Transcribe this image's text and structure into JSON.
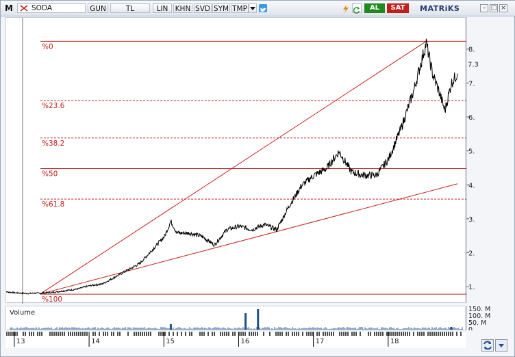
{
  "toolbar": {
    "logo": "M",
    "symbol": "SODA",
    "period": "GUN",
    "currency": "TL",
    "buttons": [
      "LIN",
      "KHN",
      "SVD",
      "SYM",
      "TMP"
    ],
    "buy_label": "AL",
    "sell_label": "SAT",
    "brand": "MATRiKS"
  },
  "colors": {
    "price_line": "#000000",
    "fib_line": "#c0201c",
    "volume_bar": "#1d4f8c",
    "buy": "#1f8a1f",
    "sell": "#c0201c"
  },
  "chart_data": {
    "type": "line",
    "x": [
      "2012-11",
      "2013-01",
      "2013-03",
      "2013-05",
      "2013-07",
      "2013-09",
      "2013-11",
      "2014-01",
      "2014-03",
      "2014-05",
      "2014-07",
      "2014-09",
      "2014-11",
      "2015-01",
      "2015-02",
      "2015-03",
      "2015-05",
      "2015-07",
      "2015-09",
      "2015-11",
      "2016-01",
      "2016-03",
      "2016-05",
      "2016-07",
      "2016-09",
      "2016-11",
      "2017-01",
      "2017-03",
      "2017-05",
      "2017-07",
      "2017-09",
      "2017-11",
      "2018-01",
      "2018-03",
      "2018-05",
      "2018-07",
      "2018-08",
      "2018-09",
      "2018-10",
      "2018-11",
      "2018-12"
    ],
    "y": [
      0.88,
      0.84,
      0.82,
      0.83,
      0.85,
      0.9,
      0.95,
      1.05,
      1.1,
      1.3,
      1.5,
      1.7,
      2.1,
      2.5,
      2.95,
      2.6,
      2.6,
      2.5,
      2.25,
      2.7,
      2.8,
      2.7,
      2.85,
      2.7,
      3.4,
      4.0,
      4.3,
      4.5,
      5.0,
      4.4,
      4.3,
      4.3,
      4.8,
      5.7,
      6.8,
      8.2,
      7.3,
      6.8,
      6.2,
      7.0,
      7.3
    ],
    "y_ticks": [
      "1.",
      "2.",
      "3.",
      "4.",
      "5.",
      "6.",
      "7.",
      "8."
    ],
    "y_tick_values": [
      1,
      2,
      3,
      4,
      5,
      6,
      7,
      8
    ],
    "ylim": [
      0.6,
      8.7
    ],
    "last_value_label": "7.3",
    "x_ticks": [
      "13",
      "14",
      "15",
      "16",
      "17",
      "18"
    ],
    "fibonacci": [
      {
        "label": "%0",
        "value": 8.25
      },
      {
        "label": "%23.6",
        "value": 6.5
      },
      {
        "label": "%38.2",
        "value": 5.4
      },
      {
        "label": "%50",
        "value": 4.5
      },
      {
        "label": "%61.8",
        "value": 3.6
      },
      {
        "label": "%100",
        "value": 0.8
      }
    ],
    "trendlines": [
      {
        "from": [
          "2013-05",
          0.8
        ],
        "to": [
          "2018-07",
          8.25
        ]
      },
      {
        "from": [
          "2013-05",
          0.8
        ],
        "to": [
          "2018-12",
          4.05
        ]
      }
    ],
    "volume": {
      "label": "Volume",
      "y_ticks": [
        "150. M",
        "100. M",
        "50. M",
        "0"
      ],
      "events": [
        {
          "date": "2015-02",
          "value": 40
        },
        {
          "date": "2016-02",
          "value": 120
        },
        {
          "date": "2016-04",
          "value": 150
        },
        {
          "date": "2018-11",
          "value": 20
        }
      ]
    }
  }
}
